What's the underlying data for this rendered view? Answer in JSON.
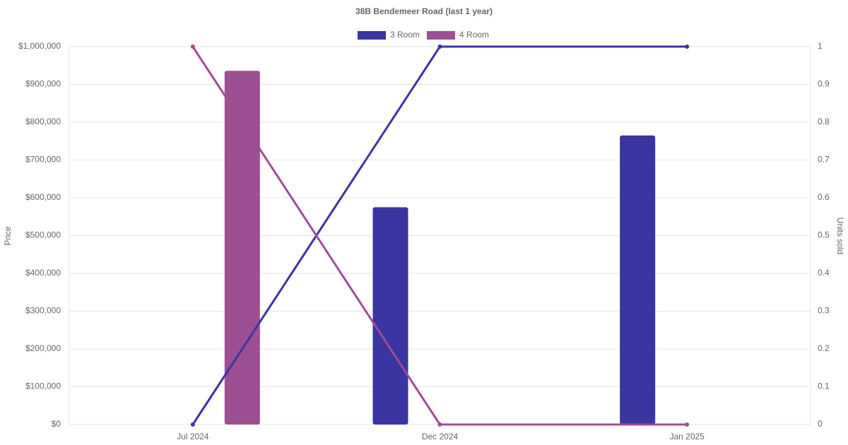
{
  "chart_data": {
    "type": "bar",
    "title": "38B Bendemeer Road (last 1 year)",
    "y_label": "Price",
    "y2_label": "Units sold",
    "categories": [
      "Jul 2024",
      "Dec 2024",
      "Jan 2025"
    ],
    "series": [
      {
        "name": "3 Room",
        "color": "#3a35a0",
        "values": [
          null,
          575000,
          765000
        ],
        "units_sold": [
          0,
          1,
          1
        ]
      },
      {
        "name": "4 Room",
        "color": "#9d4f94",
        "values": [
          936000,
          null,
          null
        ],
        "units_sold": [
          1,
          0,
          0
        ]
      }
    ],
    "ylim": [
      0,
      1000000
    ],
    "yticks": [
      {
        "value": 0,
        "label": "$0"
      },
      {
        "value": 100000,
        "label": "$100,000"
      },
      {
        "value": 200000,
        "label": "$200,000"
      },
      {
        "value": 300000,
        "label": "$300,000"
      },
      {
        "value": 400000,
        "label": "$400,000"
      },
      {
        "value": 500000,
        "label": "$500,000"
      },
      {
        "value": 600000,
        "label": "$600,000"
      },
      {
        "value": 700000,
        "label": "$700,000"
      },
      {
        "value": 800000,
        "label": "$800,000"
      },
      {
        "value": 900000,
        "label": "$900,000"
      },
      {
        "value": 1000000,
        "label": "$1,000,000"
      }
    ],
    "y2lim": [
      0,
      1
    ],
    "y2ticks": [
      0,
      0.1,
      0.2,
      0.3,
      0.4,
      0.5,
      0.6,
      0.7,
      0.8,
      0.9,
      1
    ],
    "grid": true,
    "legend": "top"
  }
}
